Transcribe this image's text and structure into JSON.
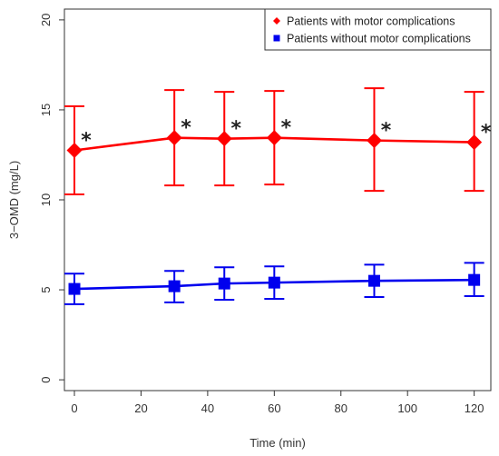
{
  "chart_data": {
    "type": "line",
    "xlabel": "Time (min)",
    "ylabel": "3−OMD (mg/L)",
    "xlim": [
      -3,
      125
    ],
    "ylim": [
      -0.6,
      20.6
    ],
    "x_ticks": [
      0,
      20,
      40,
      60,
      80,
      100,
      120
    ],
    "y_ticks": [
      0,
      5,
      10,
      15,
      20
    ],
    "x_tick_labels": [
      "0",
      "20",
      "40",
      "60",
      "80",
      "100",
      "120"
    ],
    "y_tick_labels": [
      "0",
      "5",
      "10",
      "15",
      "20"
    ],
    "grid": false,
    "legend_position": "top-right",
    "significance_marker": "*",
    "series": [
      {
        "name": "Patients with motor complications",
        "color": "#ff0000",
        "marker": "diamond",
        "x": [
          0,
          30,
          45,
          60,
          90,
          120
        ],
        "y": [
          12.75,
          13.45,
          13.4,
          13.45,
          13.3,
          13.2
        ],
        "err_low": [
          10.3,
          10.8,
          10.8,
          10.85,
          10.5,
          10.5
        ],
        "err_high": [
          15.2,
          16.1,
          16.0,
          16.05,
          16.2,
          16.0
        ],
        "significant": [
          true,
          true,
          true,
          true,
          true,
          true
        ]
      },
      {
        "name": "Patients without motor complications",
        "color": "#0000ee",
        "marker": "square",
        "x": [
          0,
          30,
          45,
          60,
          90,
          120
        ],
        "y": [
          5.05,
          5.2,
          5.35,
          5.4,
          5.5,
          5.55
        ],
        "err_low": [
          4.2,
          4.3,
          4.45,
          4.5,
          4.6,
          4.65
        ],
        "err_high": [
          5.9,
          6.05,
          6.25,
          6.3,
          6.4,
          6.5
        ],
        "significant": [
          false,
          false,
          false,
          false,
          false,
          false
        ]
      }
    ]
  }
}
